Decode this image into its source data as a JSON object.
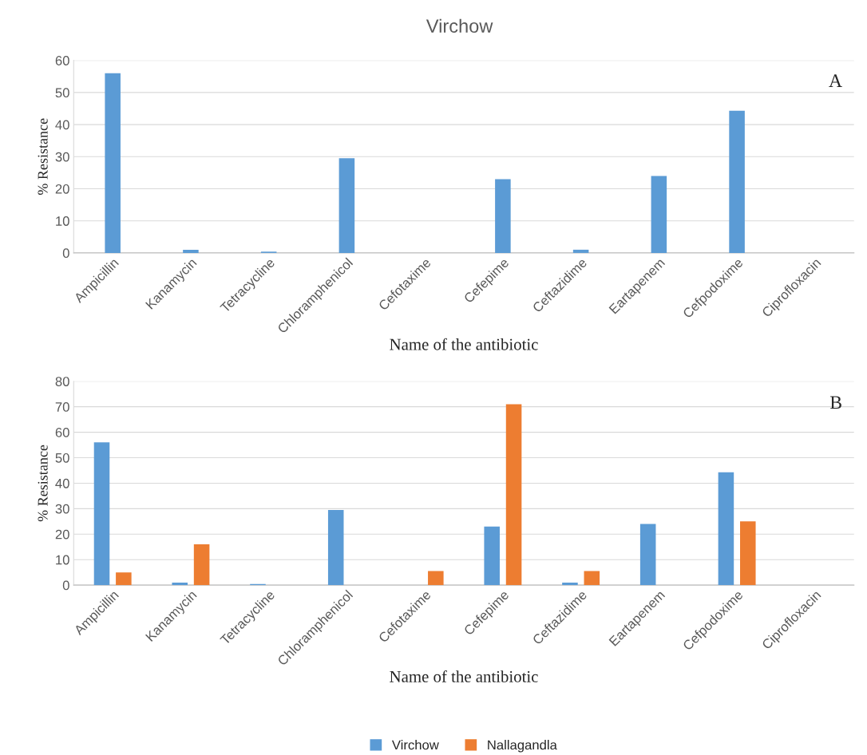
{
  "chart_data": [
    {
      "type": "bar",
      "title": "Virchow",
      "xlabel": "Name of the antibiotic",
      "ylabel": "% Resistance",
      "categories": [
        "Ampicillin",
        "Kanamycin",
        "Tetracycline",
        "Chloramphenicol",
        "Cefotaxime",
        "Cefepime",
        "Ceftazidime",
        "Eartapenem",
        "Cefpodoxime",
        "Ciprofloxacin"
      ],
      "series": [
        {
          "color": "#5b9bd5",
          "values": [
            56,
            1,
            0.4,
            29.5,
            0,
            23,
            1,
            24,
            44.3,
            0
          ]
        }
      ],
      "ylim": [
        0,
        60
      ],
      "yticks": [
        0,
        10,
        20,
        30,
        40,
        50,
        60
      ],
      "grid": "y",
      "legend": false,
      "annotations": [
        "A"
      ]
    },
    {
      "type": "bar",
      "xlabel": "Name of the antibiotic",
      "ylabel": "% Resistance",
      "categories": [
        "Ampicillin",
        "Kanamycin",
        "Tetracycline",
        "Chloramphenicol",
        "Cefotaxime",
        "Cefepime",
        "Ceftazidime",
        "Eartapenem",
        "Cefpodoxime",
        "Ciprofloxacin"
      ],
      "series": [
        {
          "name": "Virchow",
          "color": "#5b9bd5",
          "values": [
            56,
            1,
            0.4,
            29.5,
            0,
            23,
            1,
            24,
            44.3,
            0
          ]
        },
        {
          "name": "Nallagandla",
          "color": "#ed7d31",
          "values": [
            5,
            16,
            0,
            0,
            5.5,
            71,
            5.5,
            0,
            25,
            0
          ]
        }
      ],
      "ylim": [
        0,
        80
      ],
      "yticks": [
        0,
        10,
        20,
        30,
        40,
        50,
        60,
        70,
        80
      ],
      "grid": "y",
      "legend": "bottom",
      "annotations": [
        "B"
      ]
    }
  ]
}
